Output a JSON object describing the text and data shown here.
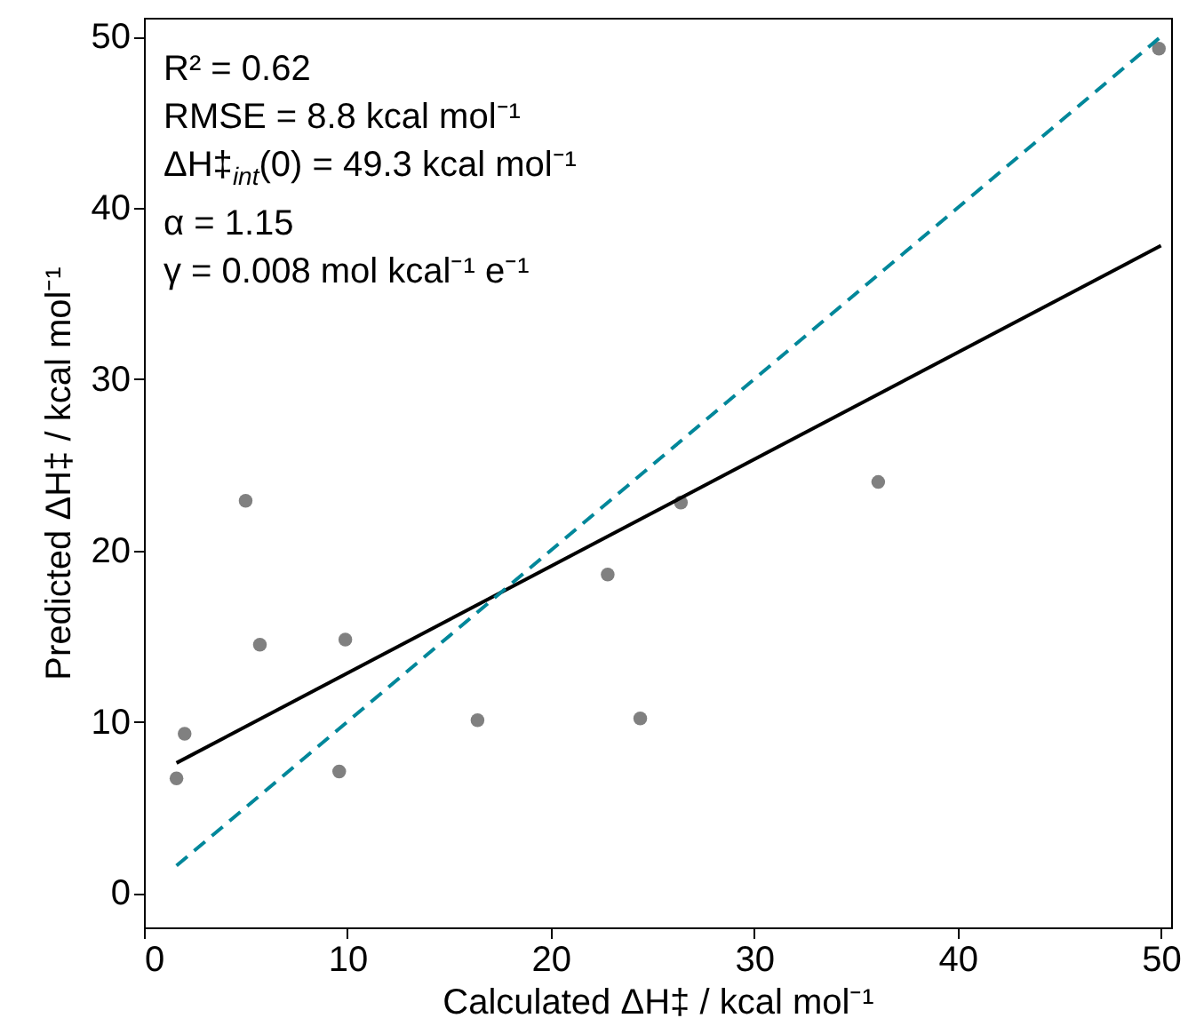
{
  "chart_data": {
    "type": "scatter",
    "xlabel": "Calculated ΔH‡ / kcal mol⁻¹",
    "ylabel": "Predicted ΔH‡ / kcal mol⁻¹",
    "xlim": [
      0,
      50.5
    ],
    "ylim": [
      -2,
      51.1
    ],
    "xticks": [
      0,
      10,
      20,
      30,
      40,
      50
    ],
    "yticks": [
      0,
      10,
      20,
      30,
      40,
      50
    ],
    "grid": false,
    "annotations": [
      "R² = 0.62",
      "RMSE = 8.8 kcal mol⁻¹",
      "ΔH‡$_{int}$(0) = 49.3 kcal mol⁻¹",
      "α = 1.15",
      "γ = 0.008 mol kcal⁻¹ e⁻¹"
    ],
    "series": [
      {
        "marker": "circle",
        "color": "#808080",
        "x": [
          1.6,
          2.0,
          5.0,
          5.7,
          9.6,
          9.9,
          16.4,
          22.8,
          24.4,
          26.4,
          36.1,
          49.9
        ],
        "values": [
          6.7,
          9.3,
          22.9,
          14.5,
          7.1,
          14.8,
          10.1,
          18.6,
          10.2,
          22.8,
          24.0,
          49.3
        ]
      },
      {
        "type": "line",
        "color": "#000000",
        "line_style": "solid",
        "x": [
          1.6,
          50
        ],
        "values": [
          7.6,
          37.8
        ]
      },
      {
        "type": "line",
        "color": "#00879a",
        "line_style": "dashed",
        "x": [
          1.6,
          49.9
        ],
        "values": [
          1.6,
          49.9
        ]
      }
    ]
  }
}
